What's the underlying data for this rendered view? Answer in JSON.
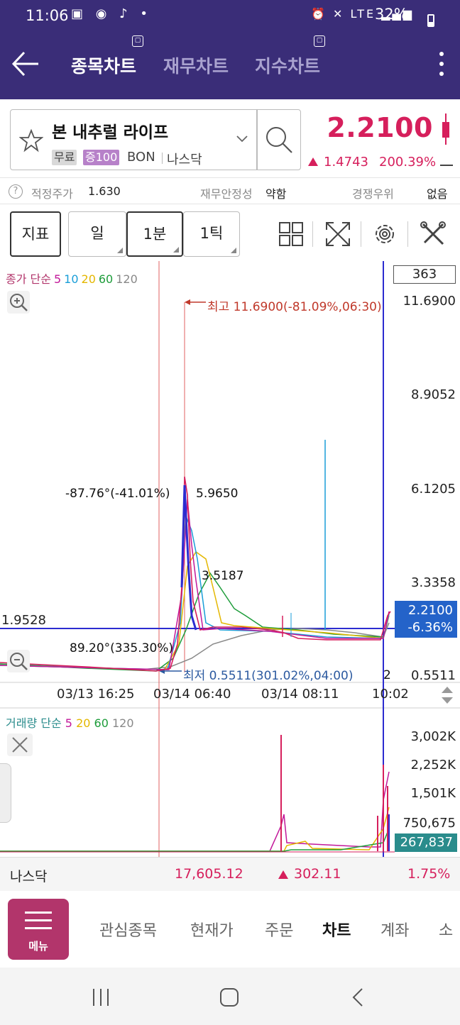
{
  "status": {
    "time": "11:06",
    "battery": "32%",
    "network": "LTE"
  },
  "header": {
    "tabs": [
      {
        "label": "종목차트",
        "active": true
      },
      {
        "label": "재무차트",
        "active": false
      },
      {
        "label": "지수차트",
        "active": false
      }
    ]
  },
  "stock": {
    "name": "본 내추럴 라이프",
    "tag_free": "무료",
    "tag_margin": "증100",
    "code": "BON",
    "market": "나스닥",
    "price": "2.2100",
    "change": "1.4743",
    "change_pct": "200.39%"
  },
  "info_row": {
    "fair_label": "적정주가",
    "fair_value": "1.630",
    "stability_label": "재무안정성",
    "stability_value": "약함",
    "compete_label": "경쟁우위",
    "compete_value": "없음"
  },
  "toolbar": {
    "indicator": "지표",
    "period_day": "일",
    "period_1min": "1분",
    "period_1tick": "1틱"
  },
  "price_chart": {
    "legend": {
      "label": "종가 단순",
      "ma": [
        "5",
        "10",
        "20",
        "60",
        "120"
      ]
    },
    "count": "363",
    "y_ticks": [
      "11.6900",
      "8.9052",
      "6.1205",
      "3.3358",
      "0.5511"
    ],
    "high_label": "최고 11.6900(-81.09%,06:30)",
    "low_label": "최저 0.5511(301.02%,04:00)",
    "anno_angle_top": "-87.76°(-41.01%)",
    "anno_angle_bottom": "89.20°(335.30%)",
    "anno_5965": "5.9650",
    "anno_3518": "3.5187",
    "left_value": "1.9528",
    "current_price": "2.2100",
    "current_pct": "-6.36%",
    "x_ticks": [
      "03/13 16:25",
      "03/14 06:40",
      "03/14 08:11",
      "10:02"
    ],
    "page_num": "2"
  },
  "volume_chart": {
    "legend": {
      "label": "거래량 단순",
      "ma": [
        "5",
        "20",
        "60",
        "120"
      ]
    },
    "y_ticks": [
      "3,002K",
      "2,252K",
      "1,501K",
      "750,675"
    ],
    "current": "267,837"
  },
  "index_bar": {
    "name": "나스닥",
    "price": "17,605.12",
    "change": "302.11",
    "pct": "1.75%"
  },
  "bottom_nav": {
    "menu": "메뉴",
    "items": [
      "관심종목",
      "현재가",
      "주문",
      "차트",
      "계좌",
      "소"
    ]
  },
  "colors": {
    "header_bg": "#3a2d78",
    "up": "#d61f5c",
    "ma5": "#c2189a",
    "ma10": "#1a9ed8",
    "ma20": "#e4b700",
    "ma60": "#1d9c3a",
    "ma120": "#888888",
    "price_tag": "#2463c9",
    "volume_tag": "#2a8c8c"
  },
  "icons": [
    "back-arrow-icon",
    "star-icon",
    "search-icon",
    "grid-icon",
    "expand-icon",
    "gear-icon",
    "tools-icon",
    "zoom-in-icon",
    "zoom-out-icon",
    "close-icon",
    "kebab-icon"
  ]
}
